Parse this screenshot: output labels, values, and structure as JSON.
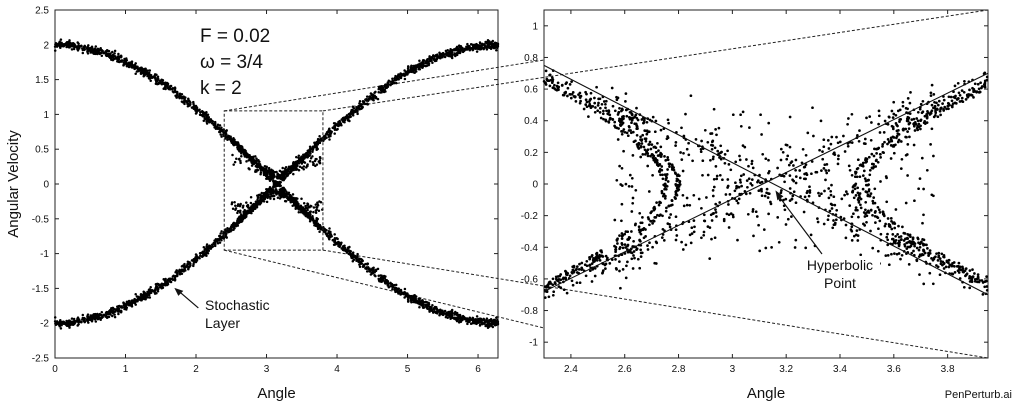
{
  "watermark": "PenPerturb.ai",
  "chart_data": [
    {
      "type": "scatter",
      "title": "",
      "xlabel": "Angle",
      "ylabel": "Angular Velocity",
      "xlim": [
        0,
        6.283
      ],
      "ylim": [
        -2.5,
        2.5
      ],
      "xticks": [
        "0",
        "1",
        "2",
        "3",
        "4",
        "5",
        "6"
      ],
      "yticks": [
        "-2.5",
        "-2",
        "-1.5",
        "-1",
        "-0.5",
        "0",
        "0.5",
        "1",
        "1.5",
        "2",
        "2.5"
      ],
      "grid": false,
      "parameters": [
        "F = 0.02",
        "ω = 3/4",
        "k = 2"
      ],
      "annotation": {
        "lines": [
          "Stochastic",
          "Layer"
        ],
        "target": [
          1.65,
          -1.45
        ]
      },
      "zoom_box": {
        "x": [
          2.4,
          3.8
        ],
        "y": [
          -0.95,
          1.05
        ]
      },
      "series": [
        {
          "kind": "separatrix_band",
          "equation": "v = ±2·cos(θ/2)",
          "spread": 0.03,
          "points": 1600
        },
        {
          "kind": "stochastic_layer",
          "x_range": [
            2.45,
            3.85
          ],
          "y_range": [
            -0.4,
            0.4
          ],
          "points": 260
        }
      ]
    },
    {
      "type": "scatter",
      "title": "",
      "xlabel": "Angle",
      "ylabel": "",
      "xlim": [
        2.3,
        3.95
      ],
      "ylim": [
        -1.1,
        1.1
      ],
      "xticks": [
        "2.4",
        "2.6",
        "2.8",
        "3",
        "3.2",
        "3.4",
        "3.6",
        "3.8"
      ],
      "yticks": [
        "-1",
        "-0.8",
        "-0.6",
        "-0.4",
        "-0.2",
        "0",
        "0.2",
        "0.4",
        "0.6",
        "0.8",
        "1"
      ],
      "grid": false,
      "annotation": {
        "lines": [
          "Hyperbolic",
          "Point"
        ],
        "target": [
          3.16,
          -0.04
        ]
      },
      "reference_lines": [
        {
          "x": [
            2.3,
            3.95
          ],
          "y": [
            -0.68,
            0.7
          ]
        },
        {
          "x": [
            2.3,
            3.95
          ],
          "y": [
            0.75,
            -0.7
          ]
        }
      ],
      "series": [
        {
          "kind": "separatrix_arms",
          "slope": 0.86,
          "points": 900
        },
        {
          "kind": "inner_hyperbolas",
          "vertices": [
            2.8,
            2.75,
            3.45,
            3.5
          ],
          "points": 700
        },
        {
          "kind": "chaotic_scatter",
          "x_range": [
            2.55,
            3.75
          ],
          "y_range": [
            -0.55,
            0.55
          ],
          "points": 700
        }
      ]
    }
  ]
}
